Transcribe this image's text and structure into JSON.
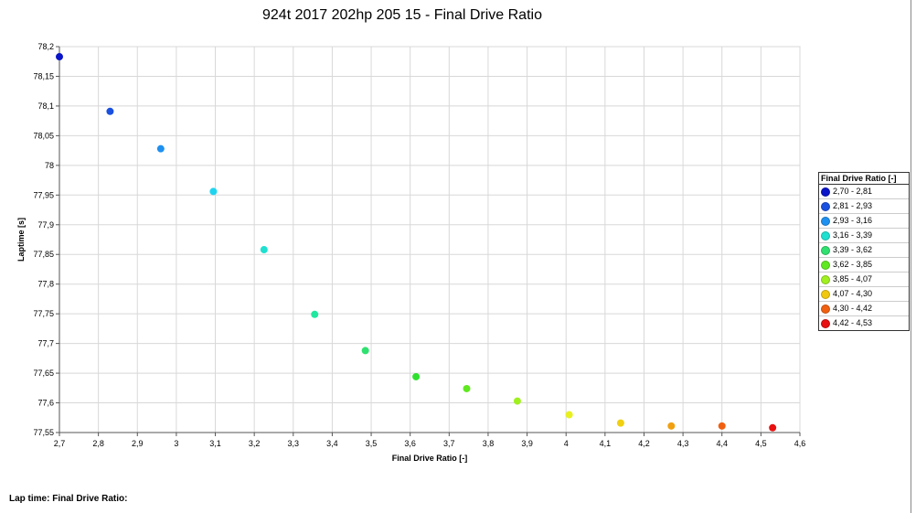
{
  "chart_data": {
    "type": "scatter",
    "title": "924t 2017 202hp 205 15 - Final Drive Ratio",
    "xlabel": "Final Drive Ratio [-]",
    "ylabel": "Laptime [s]",
    "xlim": [
      2.7,
      4.6
    ],
    "ylim": [
      77.55,
      78.2
    ],
    "grid": true,
    "legend_position": "right",
    "x_ticks": [
      "2,7",
      "2,8",
      "2,9",
      "3",
      "3,1",
      "3,2",
      "3,3",
      "3,4",
      "3,5",
      "3,6",
      "3,7",
      "3,8",
      "3,9",
      "4",
      "4,1",
      "4,2",
      "4,3",
      "4,4",
      "4,5",
      "4,6"
    ],
    "y_ticks": [
      "77,55",
      "77,6",
      "77,65",
      "77,7",
      "77,75",
      "77,8",
      "77,85",
      "77,9",
      "77,95",
      "78",
      "78,05",
      "78,1",
      "78,15",
      "78,2"
    ],
    "points": [
      {
        "x": 2.7,
        "y": 78.183,
        "color": "#0a14c8"
      },
      {
        "x": 2.83,
        "y": 78.091,
        "color": "#1a50e0"
      },
      {
        "x": 2.96,
        "y": 78.028,
        "color": "#1e90f0"
      },
      {
        "x": 3.095,
        "y": 77.956,
        "color": "#20d4f0"
      },
      {
        "x": 3.225,
        "y": 77.858,
        "color": "#20e0d0"
      },
      {
        "x": 3.355,
        "y": 77.749,
        "color": "#20e8a0"
      },
      {
        "x": 3.485,
        "y": 77.688,
        "color": "#30e070"
      },
      {
        "x": 3.615,
        "y": 77.644,
        "color": "#30e030"
      },
      {
        "x": 3.745,
        "y": 77.624,
        "color": "#60e820"
      },
      {
        "x": 3.875,
        "y": 77.603,
        "color": "#a0f020"
      },
      {
        "x": 4.008,
        "y": 77.58,
        "color": "#e8f020"
      },
      {
        "x": 4.14,
        "y": 77.566,
        "color": "#f0d010"
      },
      {
        "x": 4.27,
        "y": 77.561,
        "color": "#f0a010"
      },
      {
        "x": 4.4,
        "y": 77.561,
        "color": "#f06010"
      },
      {
        "x": 4.53,
        "y": 77.558,
        "color": "#e81010"
      }
    ]
  },
  "legend": {
    "title": "Final Drive Ratio [-]",
    "items": [
      {
        "label": "2,70 - 2,81",
        "color": "#0a14c8"
      },
      {
        "label": "2,81 - 2,93",
        "color": "#1a50e0"
      },
      {
        "label": "2,93 - 3,16",
        "color": "#1e90f0"
      },
      {
        "label": "3,16 - 3,39",
        "color": "#20e0d0"
      },
      {
        "label": "3,39 - 3,62",
        "color": "#30e070"
      },
      {
        "label": "3,62 - 3,85",
        "color": "#60e820"
      },
      {
        "label": "3,85 - 4,07",
        "color": "#a0f020"
      },
      {
        "label": "4,07 - 4,30",
        "color": "#f0c810"
      },
      {
        "label": "4,30 - 4,42",
        "color": "#f06010"
      },
      {
        "label": "4,42 - 4,53",
        "color": "#e81010"
      }
    ]
  },
  "footer": {
    "label": "Lap time: Final Drive Ratio:"
  }
}
